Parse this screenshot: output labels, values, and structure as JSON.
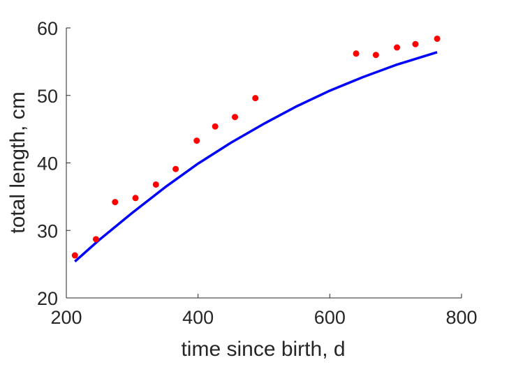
{
  "chart_data": {
    "type": "scatter",
    "title": "",
    "xlabel": "time since birth, d",
    "ylabel": "total length, cm",
    "xlim": [
      200,
      800
    ],
    "ylim": [
      20,
      60
    ],
    "xticks": [
      200,
      400,
      600,
      800
    ],
    "yticks": [
      20,
      30,
      40,
      50,
      60
    ],
    "xtick_labels": [
      "200",
      "400",
      "600",
      "800"
    ],
    "ytick_labels": [
      "20",
      "30",
      "40",
      "50",
      "60"
    ],
    "grid": false,
    "legend": "none",
    "series": [
      {
        "kind": "scatter",
        "color": "#ff0000",
        "points": [
          {
            "x": 213,
            "y": 26.3
          },
          {
            "x": 245,
            "y": 28.7
          },
          {
            "x": 274,
            "y": 34.2
          },
          {
            "x": 305,
            "y": 34.8
          },
          {
            "x": 336,
            "y": 36.8
          },
          {
            "x": 366,
            "y": 39.1
          },
          {
            "x": 398,
            "y": 43.3
          },
          {
            "x": 426,
            "y": 45.4
          },
          {
            "x": 456,
            "y": 46.8
          },
          {
            "x": 487,
            "y": 49.6
          },
          {
            "x": 640,
            "y": 56.2
          },
          {
            "x": 670,
            "y": 56.0
          },
          {
            "x": 702,
            "y": 57.1
          },
          {
            "x": 730,
            "y": 57.6
          },
          {
            "x": 763,
            "y": 58.4
          }
        ]
      },
      {
        "kind": "line",
        "color": "#0000ff",
        "points": [
          {
            "x": 213,
            "y": 25.4
          },
          {
            "x": 250,
            "y": 28.6
          },
          {
            "x": 300,
            "y": 32.6
          },
          {
            "x": 350,
            "y": 36.4
          },
          {
            "x": 400,
            "y": 39.9
          },
          {
            "x": 450,
            "y": 43.0
          },
          {
            "x": 500,
            "y": 45.8
          },
          {
            "x": 550,
            "y": 48.4
          },
          {
            "x": 600,
            "y": 50.7
          },
          {
            "x": 650,
            "y": 52.7
          },
          {
            "x": 700,
            "y": 54.5
          },
          {
            "x": 763,
            "y": 56.4
          }
        ]
      }
    ]
  }
}
